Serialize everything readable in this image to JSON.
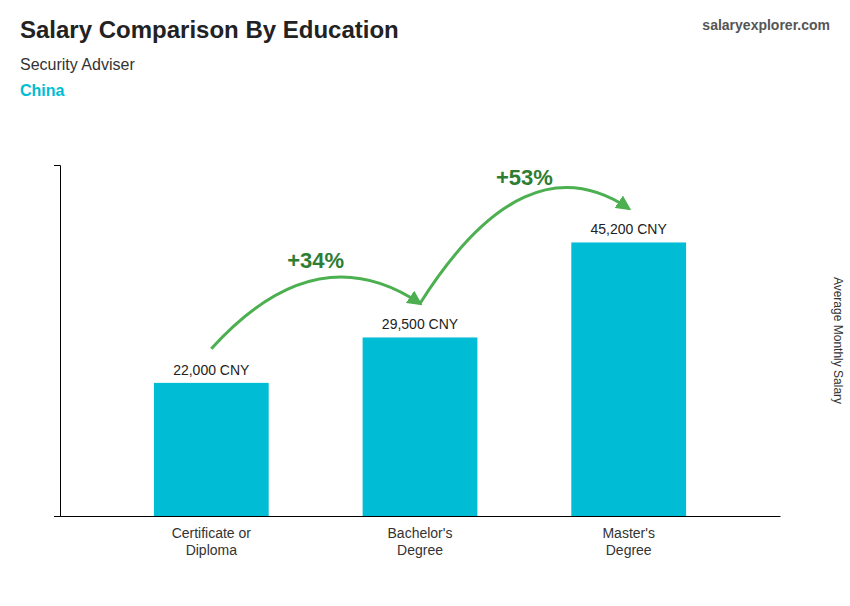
{
  "chart_data": {
    "type": "bar",
    "title": "Salary Comparison By Education",
    "subtitle": "Security Adviser",
    "country": "China",
    "source": "salaryexplorer.com",
    "ylabel": "Average Monthly Salary",
    "categories": [
      "Certificate or\nDiploma",
      "Bachelor's\nDegree",
      "Master's\nDegree"
    ],
    "values": [
      22000,
      29500,
      45200
    ],
    "value_labels": [
      "22,000 CNY",
      "29,500 CNY",
      "45,200 CNY"
    ],
    "data_labels": true,
    "annotations": [
      "+34%",
      "+53%"
    ],
    "color": "#00bcd4",
    "ylim": [
      0,
      58000
    ],
    "tick_labels": "x",
    "grid": false
  }
}
